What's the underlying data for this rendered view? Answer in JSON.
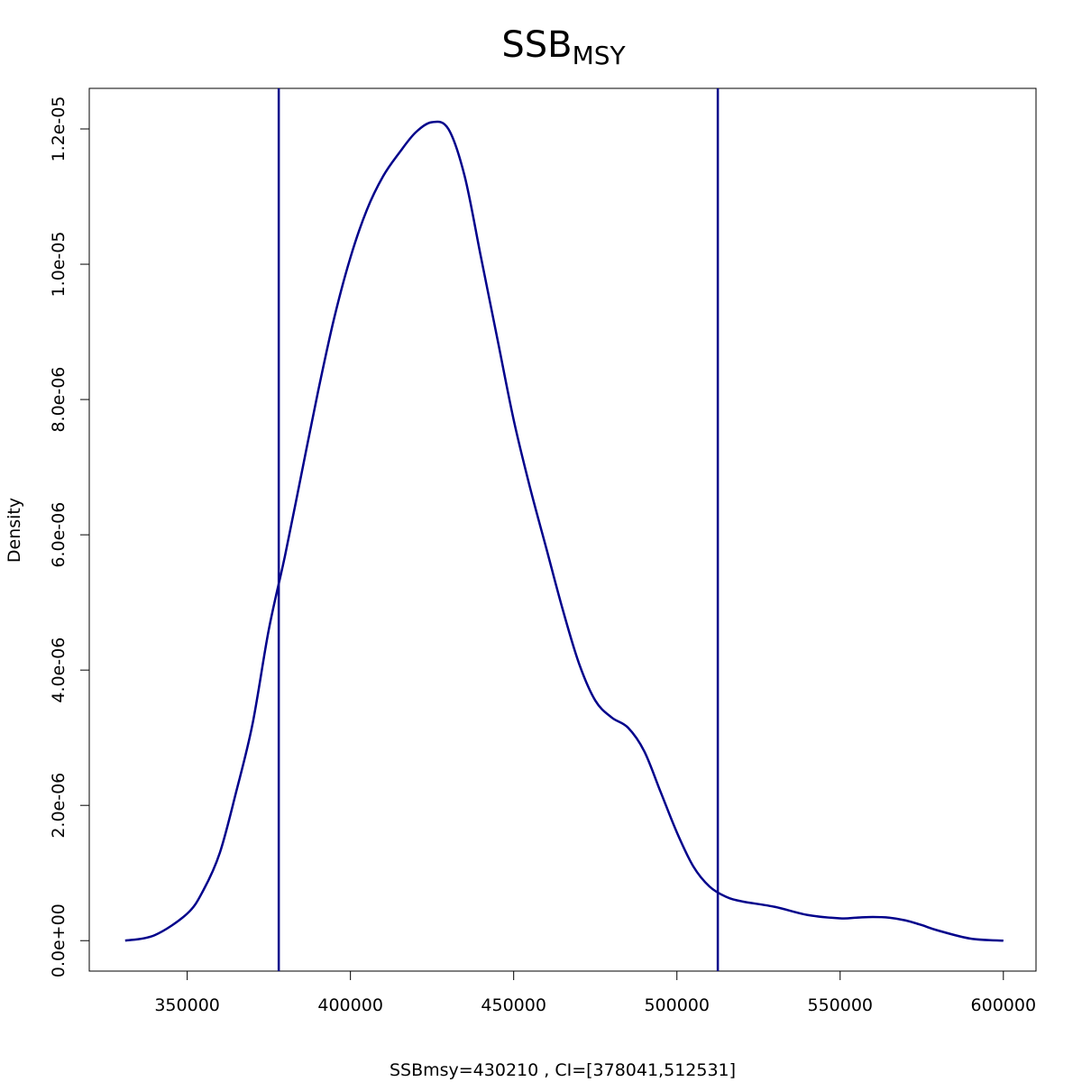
{
  "chart_data": {
    "type": "line",
    "title": "SSB",
    "title_subscript": "MSY",
    "xlabel": "SSBmsy=430210 , CI=[378041,512531]",
    "ylabel": "Density",
    "xlim": [
      320000,
      610000
    ],
    "ylim": [
      -4.5e-07,
      1.26e-05
    ],
    "x_ticks": [
      350000,
      400000,
      450000,
      500000,
      550000,
      600000
    ],
    "x_tick_labels": [
      "350000",
      "400000",
      "450000",
      "500000",
      "550000",
      "600000"
    ],
    "y_ticks": [
      0,
      2e-06,
      4e-06,
      6e-06,
      8e-06,
      1e-05,
      1.2e-05
    ],
    "y_tick_labels": [
      "0.0e+00",
      "2.0e-06",
      "4.0e-06",
      "6.0e-06",
      "8.0e-06",
      "1.0e-05",
      "1.2e-05"
    ],
    "series": [
      {
        "name": "density",
        "color": "#00008b",
        "x": [
          331000,
          340000,
          350000,
          355000,
          360000,
          365000,
          370000,
          375000,
          380000,
          385000,
          390000,
          395000,
          400000,
          405000,
          410000,
          415000,
          420000,
          425000,
          430000,
          435000,
          440000,
          445000,
          450000,
          455000,
          460000,
          465000,
          470000,
          475000,
          480000,
          485000,
          490000,
          495000,
          500000,
          505000,
          510000,
          515000,
          520000,
          530000,
          540000,
          550000,
          555000,
          560000,
          565000,
          570000,
          575000,
          580000,
          590000,
          600000
        ],
        "y": [
          0.0,
          8e-08,
          4e-07,
          7.5e-07,
          1.3e-06,
          2.2e-06,
          3.2e-06,
          4.6e-06,
          5.7e-06,
          6.9e-06,
          8.1e-06,
          9.2e-06,
          1.01e-05,
          1.08e-05,
          1.13e-05,
          1.165e-05,
          1.195e-05,
          1.21e-05,
          1.2e-05,
          1.13e-05,
          1.01e-05,
          8.9e-06,
          7.7e-06,
          6.7e-06,
          5.8e-06,
          4.9e-06,
          4.1e-06,
          3.55e-06,
          3.3e-06,
          3.15e-06,
          2.8e-06,
          2.2e-06,
          1.6e-06,
          1.1e-06,
          8e-07,
          6.5e-07,
          5.8e-07,
          5e-07,
          3.8e-07,
          3.3e-07,
          3.4e-07,
          3.5e-07,
          3.4e-07,
          3e-07,
          2.3e-07,
          1.5e-07,
          3e-08,
          0.0
        ]
      }
    ],
    "vlines": [
      {
        "name": "ci-lower-line",
        "x": 378041,
        "color": "#00008b"
      },
      {
        "name": "ci-upper-line",
        "x": 512531,
        "color": "#00008b"
      }
    ]
  }
}
